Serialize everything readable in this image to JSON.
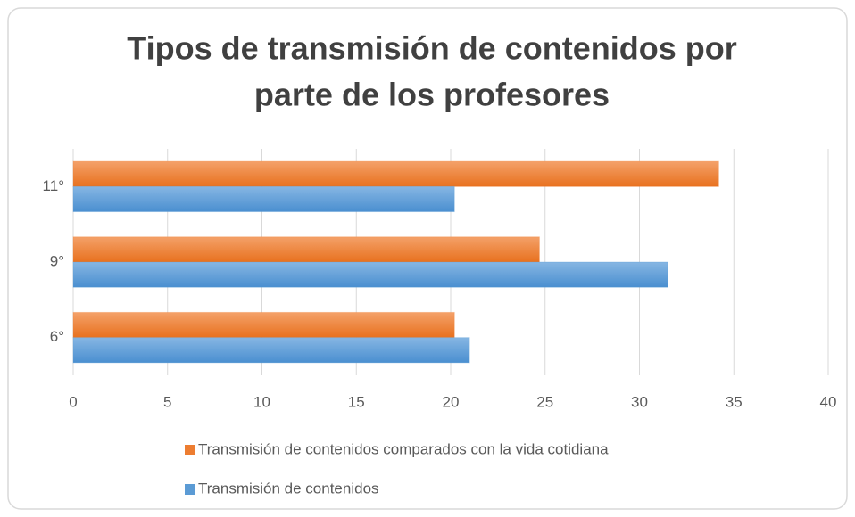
{
  "chart_data": {
    "type": "hbar",
    "title": [
      "Tipos de transmisión de contenidos por",
      "parte de los profesores"
    ],
    "categories": [
      "6°",
      "9°",
      "11°"
    ],
    "series": [
      {
        "name": "Transmisión de contenidos comparados con la vida cotidiana",
        "color": "#ed7d31",
        "values": [
          20.2,
          24.7,
          34.2
        ]
      },
      {
        "name": "Transmisión de contenidos",
        "color": "#5b9bd5",
        "values": [
          21,
          31.5,
          20.2
        ]
      }
    ],
    "xlim": [
      0,
      40
    ],
    "xticks": [
      0,
      5,
      10,
      15,
      20,
      25,
      30,
      35,
      40
    ],
    "grid": true,
    "legend": "bottom"
  }
}
